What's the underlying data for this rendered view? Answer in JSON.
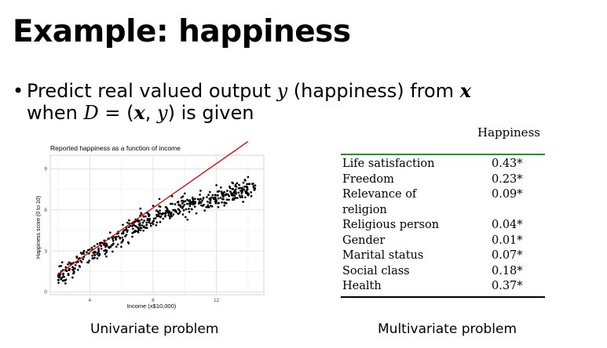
{
  "slide": {
    "title": "Example: happiness",
    "bullet_dot": "•",
    "bullet_line1_pre": "Predict real valued output ",
    "bullet_var_y": "y",
    "bullet_line1_mid": " (happiness) from ",
    "bullet_var_x": "x",
    "bullet_line2_pre": "when ",
    "bullet_var_D": "D",
    "bullet_eq": " = (",
    "bullet_var_x2": "x",
    "bullet_comma": ", ",
    "bullet_var_y2": "y",
    "bullet_line2_post": ") is given",
    "caption_left": "Univariate problem",
    "caption_right": "Multivariate problem"
  },
  "table": {
    "header": "Happiness",
    "rows": [
      {
        "label": "Life satisfaction",
        "value": "0.43*"
      },
      {
        "label": "Freedom",
        "value": "0.23*"
      },
      {
        "label": "Relevance of",
        "value": "0.09*"
      },
      {
        "label": "religion",
        "value": ""
      },
      {
        "label": "Religious person",
        "value": "0.04*"
      },
      {
        "label": "Gender",
        "value": "0.01*"
      },
      {
        "label": "Marital status",
        "value": "0.07*"
      },
      {
        "label": "Social class",
        "value": "0.18*"
      },
      {
        "label": "Health",
        "value": "0.37*"
      }
    ],
    "rule_top_color": "#2e8b2e"
  },
  "chart_data": {
    "type": "scatter",
    "title": "Reported happiness as a function of income",
    "xlabel": "Income (x$10,000)",
    "ylabel": "Happiness score (0 to 10)",
    "xlim": [
      1.5,
      15
    ],
    "ylim": [
      -0.2,
      10
    ],
    "xticks": [
      4,
      8,
      12
    ],
    "yticks": [
      0,
      3,
      6,
      9
    ],
    "grid": true,
    "point_color": "#000000",
    "fit_color": "#e00000",
    "fit_line": {
      "x": [
        2,
        14
      ],
      "y": [
        1.3,
        11.0
      ]
    },
    "point_model": {
      "n": 500,
      "x_range": [
        2,
        14.5
      ],
      "note_free": true
    },
    "samples": [
      {
        "x": 2.1,
        "y": 1.2
      },
      {
        "x": 2.3,
        "y": 1.6
      },
      {
        "x": 2.5,
        "y": 0.9
      },
      {
        "x": 2.8,
        "y": 2.1
      },
      {
        "x": 3.0,
        "y": 1.4
      },
      {
        "x": 3.3,
        "y": 2.4
      },
      {
        "x": 3.6,
        "y": 2.9
      },
      {
        "x": 4.0,
        "y": 3.1
      },
      {
        "x": 4.3,
        "y": 2.5
      },
      {
        "x": 4.7,
        "y": 3.6
      },
      {
        "x": 5.0,
        "y": 3.3
      },
      {
        "x": 5.4,
        "y": 4.0
      },
      {
        "x": 5.8,
        "y": 4.4
      },
      {
        "x": 6.1,
        "y": 3.8
      },
      {
        "x": 6.5,
        "y": 5.0
      },
      {
        "x": 6.9,
        "y": 5.3
      },
      {
        "x": 7.2,
        "y": 6.1
      },
      {
        "x": 7.6,
        "y": 5.8
      },
      {
        "x": 8.0,
        "y": 6.3
      },
      {
        "x": 8.4,
        "y": 6.8
      },
      {
        "x": 8.8,
        "y": 6.2
      },
      {
        "x": 9.2,
        "y": 7.0
      },
      {
        "x": 9.6,
        "y": 6.6
      },
      {
        "x": 10.0,
        "y": 7.2
      },
      {
        "x": 10.5,
        "y": 6.9
      },
      {
        "x": 11.0,
        "y": 7.4
      },
      {
        "x": 11.5,
        "y": 7.1
      },
      {
        "x": 12.0,
        "y": 7.8
      },
      {
        "x": 12.5,
        "y": 7.3
      },
      {
        "x": 13.0,
        "y": 8.0
      },
      {
        "x": 13.5,
        "y": 7.6
      },
      {
        "x": 14.0,
        "y": 8.4
      },
      {
        "x": 14.3,
        "y": 7.9
      }
    ]
  }
}
